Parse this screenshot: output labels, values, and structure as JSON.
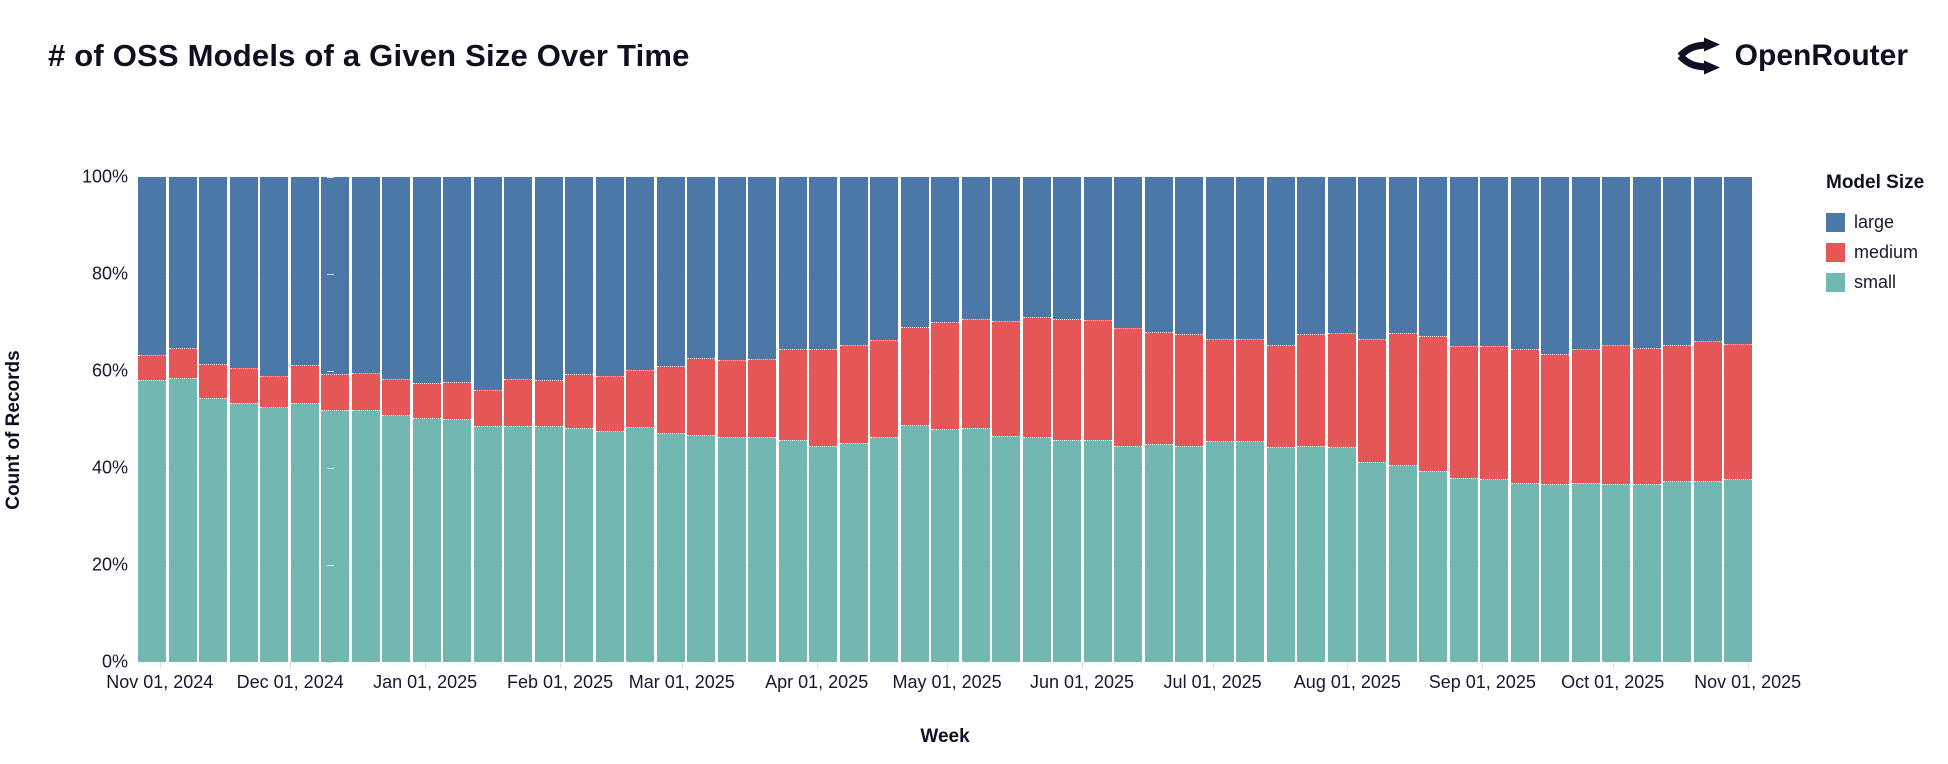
{
  "header": {
    "title": "# of OSS Models of a Given Size Over Time",
    "brand": "OpenRouter"
  },
  "chart_data": {
    "type": "bar",
    "stacking": "normalize-100%",
    "title": "# of OSS Models of a Given Size Over Time",
    "xlabel": "Week",
    "ylabel": "Count of Records",
    "units": "percent",
    "ylim": [
      0,
      100
    ],
    "grid": true,
    "legend_position": "right",
    "y_ticks": [
      "0%",
      "20%",
      "40%",
      "60%",
      "80%",
      "100%"
    ],
    "x_ticks": [
      {
        "label": "Nov 01, 2024",
        "pos": 1.35
      },
      {
        "label": "Dec 01, 2024",
        "pos": 9.43
      },
      {
        "label": "Jan 01, 2025",
        "pos": 17.79
      },
      {
        "label": "Feb 01, 2025",
        "pos": 26.15
      },
      {
        "label": "Mar 01, 2025",
        "pos": 33.69
      },
      {
        "label": "Apr 01, 2025",
        "pos": 42.05
      },
      {
        "label": "May 01, 2025",
        "pos": 50.13
      },
      {
        "label": "Jun 01, 2025",
        "pos": 58.49
      },
      {
        "label": "Jul 01, 2025",
        "pos": 66.58
      },
      {
        "label": "Aug 01, 2025",
        "pos": 74.93
      },
      {
        "label": "Sep 01, 2025",
        "pos": 83.29
      },
      {
        "label": "Oct 01, 2025",
        "pos": 91.37
      },
      {
        "label": "Nov 01, 2025",
        "pos": 99.73
      }
    ],
    "legend": {
      "title": "Model Size",
      "entries": [
        {
          "label": "large",
          "color": "#4c78a8"
        },
        {
          "label": "medium",
          "color": "#e45756"
        },
        {
          "label": "small",
          "color": "#72b7b2"
        }
      ]
    },
    "stack_order_bottom_to_top": [
      "small",
      "medium",
      "large"
    ],
    "categories": [
      "Oct 27, 2024",
      "Nov 03, 2024",
      "Nov 10, 2024",
      "Nov 17, 2024",
      "Nov 24, 2024",
      "Dec 01, 2024",
      "Dec 08, 2024",
      "Dec 15, 2024",
      "Dec 22, 2024",
      "Dec 29, 2024",
      "Jan 05, 2025",
      "Jan 12, 2025",
      "Jan 19, 2025",
      "Jan 26, 2025",
      "Feb 02, 2025",
      "Feb 09, 2025",
      "Feb 16, 2025",
      "Feb 23, 2025",
      "Mar 02, 2025",
      "Mar 09, 2025",
      "Mar 16, 2025",
      "Mar 23, 2025",
      "Mar 30, 2025",
      "Apr 06, 2025",
      "Apr 13, 2025",
      "Apr 20, 2025",
      "Apr 27, 2025",
      "May 04, 2025",
      "May 11, 2025",
      "May 18, 2025",
      "May 25, 2025",
      "Jun 01, 2025",
      "Jun 08, 2025",
      "Jun 15, 2025",
      "Jun 22, 2025",
      "Jun 29, 2025",
      "Jul 06, 2025",
      "Jul 13, 2025",
      "Jul 20, 2025",
      "Jul 27, 2025",
      "Aug 03, 2025",
      "Aug 10, 2025",
      "Aug 17, 2025",
      "Aug 24, 2025",
      "Aug 31, 2025",
      "Sep 07, 2025",
      "Sep 14, 2025",
      "Sep 21, 2025",
      "Sep 28, 2025",
      "Oct 05, 2025",
      "Oct 12, 2025",
      "Oct 19, 2025",
      "Oct 26, 2025"
    ],
    "series": [
      {
        "name": "small",
        "color": "#72b7b2",
        "values": [
          58.1,
          58.6,
          54.4,
          53.5,
          52.6,
          53.4,
          52.0,
          52.0,
          51.0,
          50.3,
          50.2,
          48.7,
          48.7,
          48.6,
          48.2,
          47.6,
          48.4,
          47.3,
          46.8,
          46.3,
          46.3,
          45.7,
          44.5,
          45.2,
          46.4,
          48.8,
          48.1,
          48.2,
          46.5,
          46.4,
          45.8,
          45.7,
          44.5,
          44.9,
          44.5,
          45.6,
          45.5,
          44.3,
          44.5,
          44.3,
          41.2,
          40.6,
          39.3,
          37.9,
          37.6,
          36.9,
          36.6,
          36.9,
          36.6,
          36.6,
          37.3,
          37.3,
          37.7
        ]
      },
      {
        "name": "medium",
        "color": "#e45756",
        "values": [
          5.0,
          5.9,
          6.8,
          7.0,
          6.3,
          7.6,
          7.3,
          7.5,
          7.2,
          7.1,
          7.3,
          7.2,
          9.5,
          9.3,
          11.1,
          11.2,
          11.6,
          13.5,
          15.7,
          15.8,
          16.1,
          18.7,
          19.9,
          20.1,
          19.9,
          20.1,
          21.8,
          22.5,
          23.6,
          24.7,
          24.8,
          24.7,
          24.2,
          23.0,
          23.0,
          20.9,
          21.0,
          21.0,
          23.0,
          23.4,
          25.3,
          27.2,
          27.7,
          27.2,
          27.5,
          27.4,
          26.8,
          27.5,
          28.6,
          27.9,
          27.9,
          28.7,
          27.8
        ]
      },
      {
        "name": "large",
        "color": "#4c78a8",
        "values": [
          36.9,
          35.5,
          38.8,
          39.5,
          41.1,
          39.0,
          40.7,
          40.5,
          41.8,
          42.6,
          42.5,
          44.1,
          41.8,
          42.1,
          40.7,
          41.2,
          40.0,
          39.2,
          37.5,
          37.9,
          37.6,
          35.6,
          35.6,
          34.7,
          33.7,
          31.1,
          30.1,
          29.3,
          29.9,
          28.9,
          29.4,
          29.6,
          31.3,
          32.1,
          32.5,
          33.5,
          33.5,
          34.7,
          32.5,
          32.3,
          33.5,
          32.2,
          33.0,
          34.9,
          34.9,
          35.7,
          36.6,
          35.6,
          34.8,
          35.5,
          34.8,
          34.0,
          34.5
        ]
      }
    ]
  }
}
